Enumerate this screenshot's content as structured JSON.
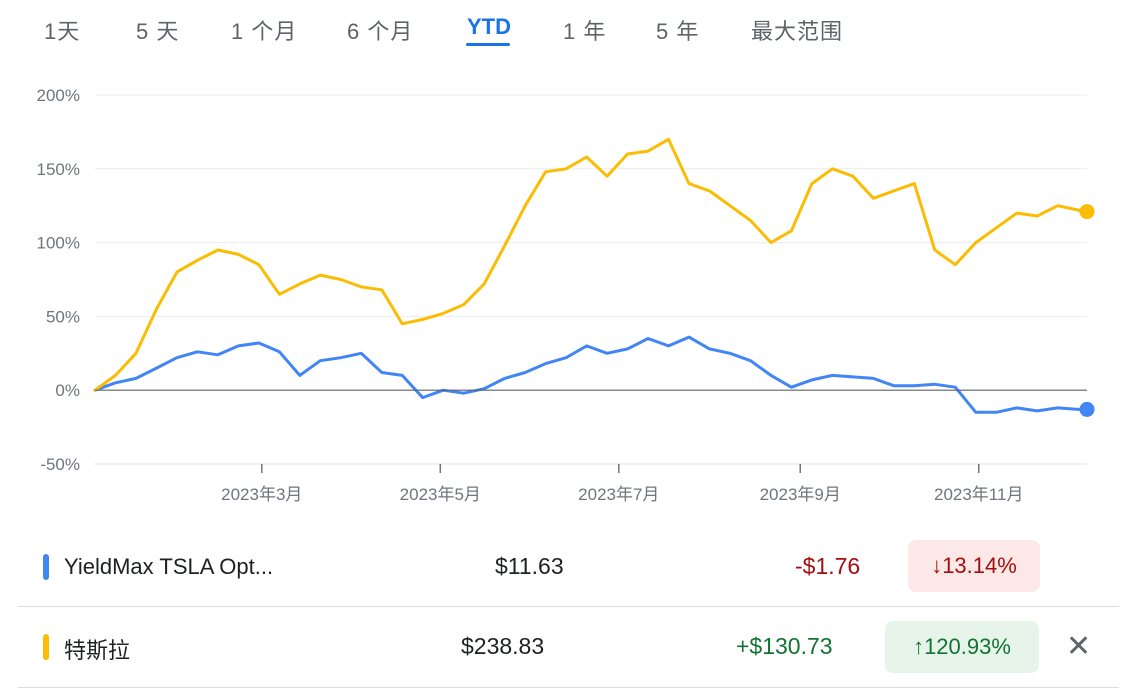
{
  "tabs": [
    "1天",
    "5 天",
    "1 个月",
    "6 个月",
    "YTD",
    "1 年",
    "5 年",
    "最大范围"
  ],
  "active_tab": "YTD",
  "colors": {
    "series_blue": "#4285f4",
    "series_yellow": "#fbbc04",
    "negative": "#a50e0e",
    "positive": "#137333",
    "accent": "#1a73e8"
  },
  "chart_data": {
    "type": "line",
    "title": "",
    "y_ticks": [
      "200%",
      "150%",
      "100%",
      "50%",
      "0%",
      "-50%"
    ],
    "ylim": [
      -50,
      200
    ],
    "x_ticks": [
      "2023年3月",
      "2023年5月",
      "2023年7月",
      "2023年9月",
      "2023年11月"
    ],
    "x_tick_dates": [
      "2023-03-01",
      "2023-05-01",
      "2023-07-01",
      "2023-09-01",
      "2023-11-01"
    ],
    "xlim": [
      "2023-01-03",
      "2023-12-08"
    ],
    "baseline": 0,
    "grid": true,
    "series": [
      {
        "name": "YieldMax TSLA Opt...",
        "color": "#4285f4",
        "x": [
          "2023-01-03",
          "2023-01-10",
          "2023-01-17",
          "2023-01-24",
          "2023-01-31",
          "2023-02-07",
          "2023-02-14",
          "2023-02-21",
          "2023-02-28",
          "2023-03-07",
          "2023-03-14",
          "2023-03-21",
          "2023-03-28",
          "2023-04-04",
          "2023-04-11",
          "2023-04-18",
          "2023-04-25",
          "2023-05-02",
          "2023-05-09",
          "2023-05-16",
          "2023-05-23",
          "2023-05-30",
          "2023-06-06",
          "2023-06-13",
          "2023-06-20",
          "2023-06-27",
          "2023-07-04",
          "2023-07-11",
          "2023-07-18",
          "2023-07-25",
          "2023-08-01",
          "2023-08-08",
          "2023-08-15",
          "2023-08-22",
          "2023-08-29",
          "2023-09-05",
          "2023-09-12",
          "2023-09-19",
          "2023-09-26",
          "2023-10-03",
          "2023-10-10",
          "2023-10-17",
          "2023-10-24",
          "2023-10-31",
          "2023-11-07",
          "2023-11-14",
          "2023-11-21",
          "2023-11-28",
          "2023-12-05",
          "2023-12-08"
        ],
        "values": [
          0,
          5,
          8,
          15,
          22,
          26,
          24,
          30,
          32,
          26,
          10,
          20,
          22,
          25,
          12,
          10,
          -5,
          0,
          -2,
          1,
          8,
          12,
          18,
          22,
          30,
          25,
          28,
          35,
          30,
          36,
          28,
          25,
          20,
          10,
          2,
          7,
          10,
          9,
          8,
          3,
          3,
          4,
          2,
          -15,
          -15,
          -12,
          -14,
          -12,
          -13,
          -13
        ]
      },
      {
        "name": "特斯拉",
        "color": "#fbbc04",
        "x": [
          "2023-01-03",
          "2023-01-10",
          "2023-01-17",
          "2023-01-24",
          "2023-01-31",
          "2023-02-07",
          "2023-02-14",
          "2023-02-21",
          "2023-02-28",
          "2023-03-07",
          "2023-03-14",
          "2023-03-21",
          "2023-03-28",
          "2023-04-04",
          "2023-04-11",
          "2023-04-18",
          "2023-04-25",
          "2023-05-02",
          "2023-05-09",
          "2023-05-16",
          "2023-05-23",
          "2023-05-30",
          "2023-06-06",
          "2023-06-13",
          "2023-06-20",
          "2023-06-27",
          "2023-07-04",
          "2023-07-11",
          "2023-07-18",
          "2023-07-25",
          "2023-08-01",
          "2023-08-08",
          "2023-08-15",
          "2023-08-22",
          "2023-08-29",
          "2023-09-05",
          "2023-09-12",
          "2023-09-19",
          "2023-09-26",
          "2023-10-03",
          "2023-10-10",
          "2023-10-17",
          "2023-10-24",
          "2023-10-31",
          "2023-11-07",
          "2023-11-14",
          "2023-11-21",
          "2023-11-28",
          "2023-12-05",
          "2023-12-08"
        ],
        "values": [
          0,
          10,
          25,
          55,
          80,
          88,
          95,
          92,
          85,
          65,
          72,
          78,
          75,
          70,
          68,
          45,
          48,
          52,
          58,
          72,
          98,
          125,
          148,
          150,
          158,
          145,
          160,
          162,
          170,
          140,
          135,
          125,
          115,
          100,
          108,
          140,
          150,
          145,
          130,
          135,
          140,
          95,
          85,
          100,
          110,
          120,
          118,
          125,
          122,
          121
        ]
      }
    ]
  },
  "rows": [
    {
      "name": "YieldMax TSLA Opt...",
      "price": "$11.63",
      "change": "-$1.76",
      "pct": "↓13.14%",
      "direction": "down",
      "color": "#4285f4"
    },
    {
      "name": "特斯拉",
      "price": "$238.83",
      "change": "+$130.73",
      "pct": "↑120.93%",
      "direction": "up",
      "color": "#fbbc04",
      "close_glyph": "✕"
    }
  ]
}
